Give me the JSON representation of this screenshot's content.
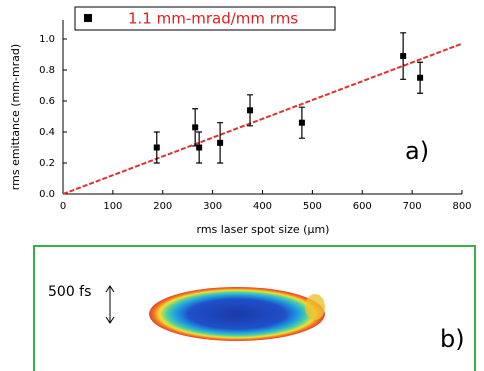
{
  "chart_data": {
    "type": "scatter",
    "x_label": "rms laser spot size (μm)",
    "y_label": "rms emittance (mm-mrad)",
    "xlim": [
      0,
      800
    ],
    "xticks": [
      0,
      100,
      200,
      300,
      400,
      500,
      600,
      700,
      800
    ],
    "ylim": [
      0,
      1.1
    ],
    "yticks": [
      {
        "value": 0,
        "label": "0.0"
      },
      0.2,
      0.4,
      0.6,
      0.8,
      {
        "value": 1,
        "label": "1.0"
      }
    ],
    "series": [
      {
        "name": "1.1 mm-mrad/mm rms",
        "color": "#000000",
        "x": [
          188,
          265,
          273,
          315,
          375,
          479,
          682,
          716
        ],
        "values": [
          0.3,
          0.43,
          0.3,
          0.33,
          0.54,
          0.46,
          0.89,
          0.75
        ],
        "errors": [
          0.1,
          0.12,
          0.1,
          0.13,
          0.1,
          0.1,
          0.15,
          0.1
        ]
      }
    ],
    "fit": {
      "x": [
        0,
        800
      ],
      "values": [
        0,
        0.97
      ],
      "color": "#e03030"
    },
    "legend_text_color": "#e02020",
    "annotations": [
      "a)"
    ]
  },
  "panel_b": {
    "label": "b)",
    "scale_label": "500 fs"
  }
}
